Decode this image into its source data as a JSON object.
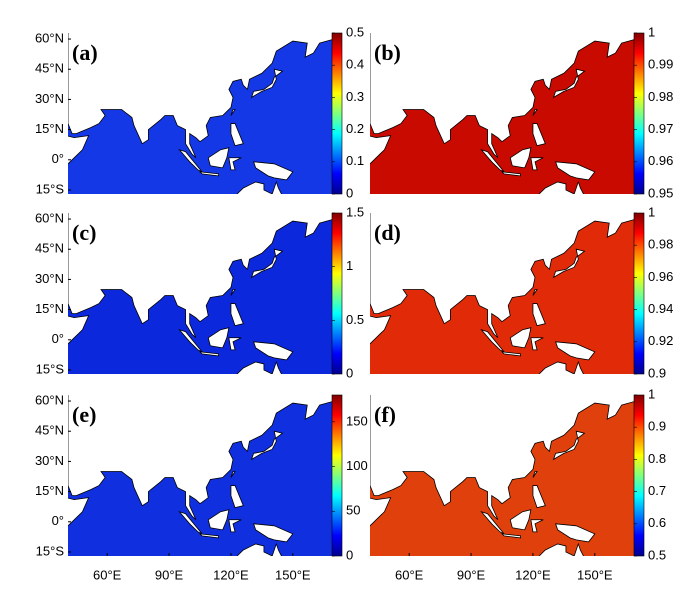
{
  "latlim": [
    -17,
    63
  ],
  "lonlim": [
    41,
    169
  ],
  "lat_ticks": [
    {
      "value": 60,
      "label": "60°N"
    },
    {
      "value": 45,
      "label": "45°N"
    },
    {
      "value": 30,
      "label": "30°N"
    },
    {
      "value": 15,
      "label": "15°N"
    },
    {
      "value": 0,
      "label": "0°"
    },
    {
      "value": -15,
      "label": "15°S"
    }
  ],
  "lon_ticks": [
    {
      "value": 60,
      "label": "60°E"
    },
    {
      "value": 90,
      "label": "90°E"
    },
    {
      "value": 120,
      "label": "120°E"
    },
    {
      "value": 150,
      "label": "150°E"
    }
  ],
  "colormap": "jet",
  "panels": [
    {
      "label": "(a)",
      "ocean_color": "#1438e6",
      "colorbar": {
        "lim": [
          0,
          0.5
        ],
        "ticks": [
          0,
          0.1,
          0.2,
          0.3,
          0.4,
          0.5
        ]
      }
    },
    {
      "label": "(b)",
      "ocean_color": "#c80a00",
      "colorbar": {
        "lim": [
          0.95,
          1
        ],
        "ticks": [
          0.95,
          0.96,
          0.97,
          0.98,
          0.99,
          1
        ]
      }
    },
    {
      "label": "(c)",
      "ocean_color": "#0c28dc",
      "colorbar": {
        "lim": [
          0,
          1.5
        ],
        "ticks": [
          0,
          0.5,
          1,
          1.5
        ]
      }
    },
    {
      "label": "(d)",
      "ocean_color": "#e02a08",
      "colorbar": {
        "lim": [
          0.9,
          1
        ],
        "ticks": [
          0.9,
          0.92,
          0.94,
          0.96,
          0.98,
          1
        ]
      }
    },
    {
      "label": "(e)",
      "ocean_color": "#1030e0",
      "colorbar": {
        "lim": [
          0,
          180
        ],
        "ticks": [
          0,
          50,
          100,
          150
        ]
      }
    },
    {
      "label": "(f)",
      "ocean_color": "#e0400c",
      "colorbar": {
        "lim": [
          0.5,
          1
        ],
        "ticks": [
          0.5,
          0.6,
          0.7,
          0.8,
          0.9,
          1
        ]
      }
    }
  ]
}
